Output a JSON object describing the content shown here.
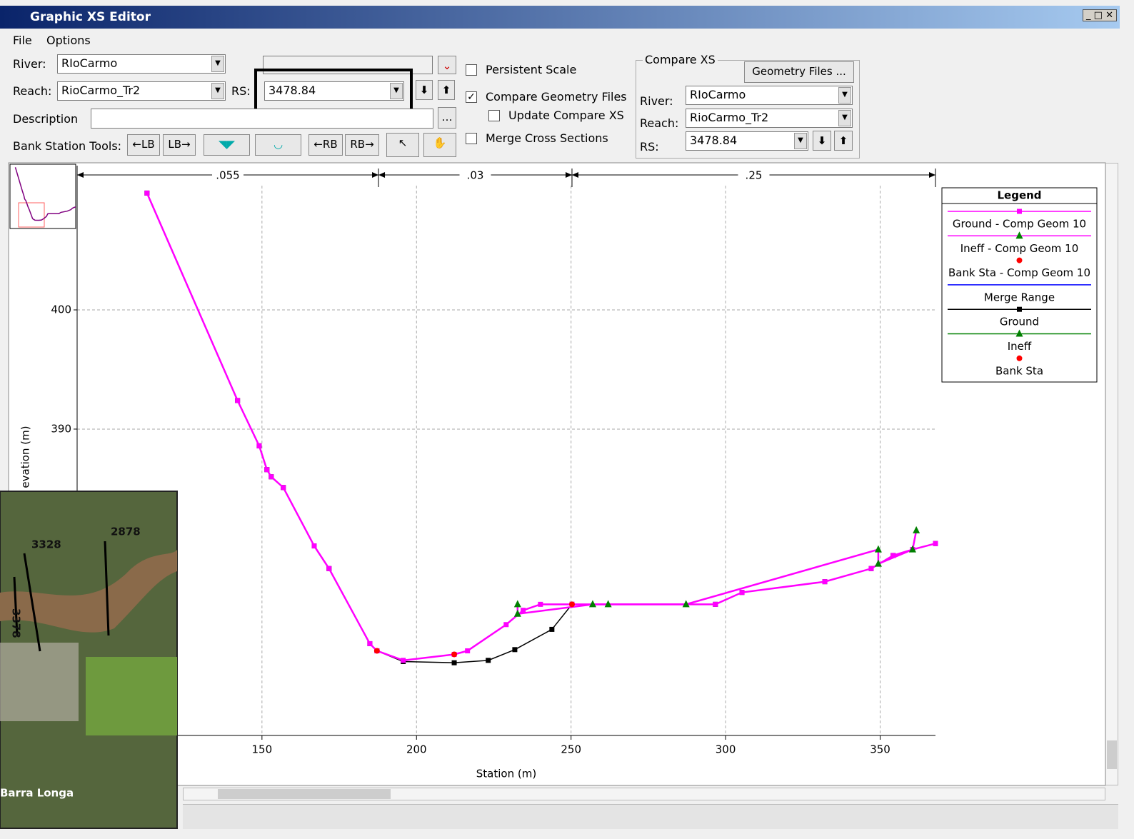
{
  "window": {
    "title": "Graphic XS Editor"
  },
  "menu": [
    "File",
    "Options"
  ],
  "form": {
    "river_label": "River:",
    "river": "RIoCarmo",
    "reach_label": "Reach:",
    "reach": "RioCarmo_Tr2",
    "rs_label": "RS:",
    "rs": "3478.84",
    "description_label": "Description",
    "bank_tools_label": "Bank Station Tools:",
    "bank_tools": [
      "←LB",
      "LB→",
      "←RB",
      "RB→"
    ]
  },
  "options": [
    {
      "label": "Persistent Scale",
      "checked": false
    },
    {
      "label": "Compare Geometry Files",
      "checked": true
    },
    {
      "label": "Update Compare XS",
      "checked": false
    },
    {
      "label": "Merge Cross Sections",
      "checked": false
    }
  ],
  "compare_xs": {
    "title": "Compare XS",
    "button": "Geometry Files ...",
    "river_label": "River:",
    "river": "RIoCarmo",
    "reach_label": "Reach:",
    "reach": "RioCarmo_Tr2",
    "rs_label": "RS:",
    "rs": "3478.84"
  },
  "inset": {
    "labels": [
      "3328",
      "2878",
      "3378",
      "Barra Longa"
    ]
  },
  "chart_data": {
    "type": "line",
    "xlabel": "Station (m)",
    "ylabel": "evation (m)",
    "xlim": [
      90.2,
      367.9
    ],
    "ylim": [
      364.3,
      412.1
    ],
    "xticks": [
      150,
      200,
      250,
      300,
      350
    ],
    "yticks": [
      390,
      400
    ],
    "grid": true,
    "legend_title": "Legend",
    "legend": "upper right",
    "manning": {
      "stations": [
        90.2,
        187.7,
        250.3,
        367.9
      ],
      "labels": [
        ".055",
        ".03",
        ".25"
      ]
    },
    "series": [
      {
        "name": "Ground - Comp Geom 10",
        "color": "#ff00ff",
        "marker": "square",
        "marker_color": "#ff00ff",
        "x": [
          112.8,
          142.1,
          149.1,
          151.6,
          153.0,
          156.9,
          166.9,
          171.7,
          184.9,
          187.2,
          195.7,
          212.2,
          216.5,
          229.0,
          234.5,
          240.1,
          250.3,
          296.7,
          305.3,
          332.1,
          347.1,
          354.2,
          360.5,
          367.9
        ],
        "values": [
          409.8,
          392.4,
          388.6,
          386.6,
          386.0,
          385.1,
          380.2,
          378.3,
          372.0,
          371.4,
          370.6,
          371.1,
          371.4,
          373.6,
          374.8,
          375.3,
          375.3,
          375.3,
          376.3,
          377.2,
          378.3,
          379.4,
          379.9,
          380.4
        ]
      },
      {
        "name": "Ineff - Comp Geom 10",
        "color": "#ff00ff",
        "marker": "triangle",
        "marker_color": "#008000",
        "x": [
          232.7,
          232.7,
          257.0,
          262.0,
          287.2,
          349.4,
          349.4,
          360.5,
          361.7
        ],
        "values": [
          375.3,
          374.5,
          375.3,
          375.3,
          375.3,
          379.9,
          378.7,
          379.9,
          381.5
        ]
      },
      {
        "name": "Bank Sta - Comp Geom 10",
        "color": null,
        "marker": "circle",
        "marker_color": "#ff0000",
        "x": [
          187.2,
          212.2,
          250.3
        ],
        "values": [
          371.4,
          371.1,
          375.3
        ]
      },
      {
        "name": "Merge Range",
        "color": "#0000ff",
        "marker": null,
        "marker_color": null,
        "x": [],
        "values": []
      },
      {
        "name": "Ground",
        "color": "#000000",
        "marker": "square",
        "marker_color": "#000000",
        "x": [
          112.8,
          142.1,
          149.1,
          151.6,
          153.0,
          156.9,
          166.9,
          171.7,
          184.9,
          187.2,
          195.7,
          212.2,
          223.2,
          231.8,
          243.8,
          250.3,
          296.7,
          305.3,
          332.1,
          347.1,
          354.2,
          360.5,
          367.9
        ],
        "values": [
          409.8,
          392.4,
          388.6,
          386.6,
          386.0,
          385.1,
          380.2,
          378.3,
          372.0,
          371.4,
          370.5,
          370.4,
          370.6,
          371.5,
          373.2,
          375.3,
          375.3,
          376.3,
          377.2,
          378.3,
          379.4,
          379.9,
          380.4
        ]
      },
      {
        "name": "Ineff",
        "color": "#008000",
        "marker": "triangle",
        "marker_color": "#008000",
        "x": [],
        "values": []
      },
      {
        "name": "Bank Sta",
        "color": null,
        "marker": "circle",
        "marker_color": "#ff0000",
        "x": [],
        "values": []
      }
    ]
  }
}
